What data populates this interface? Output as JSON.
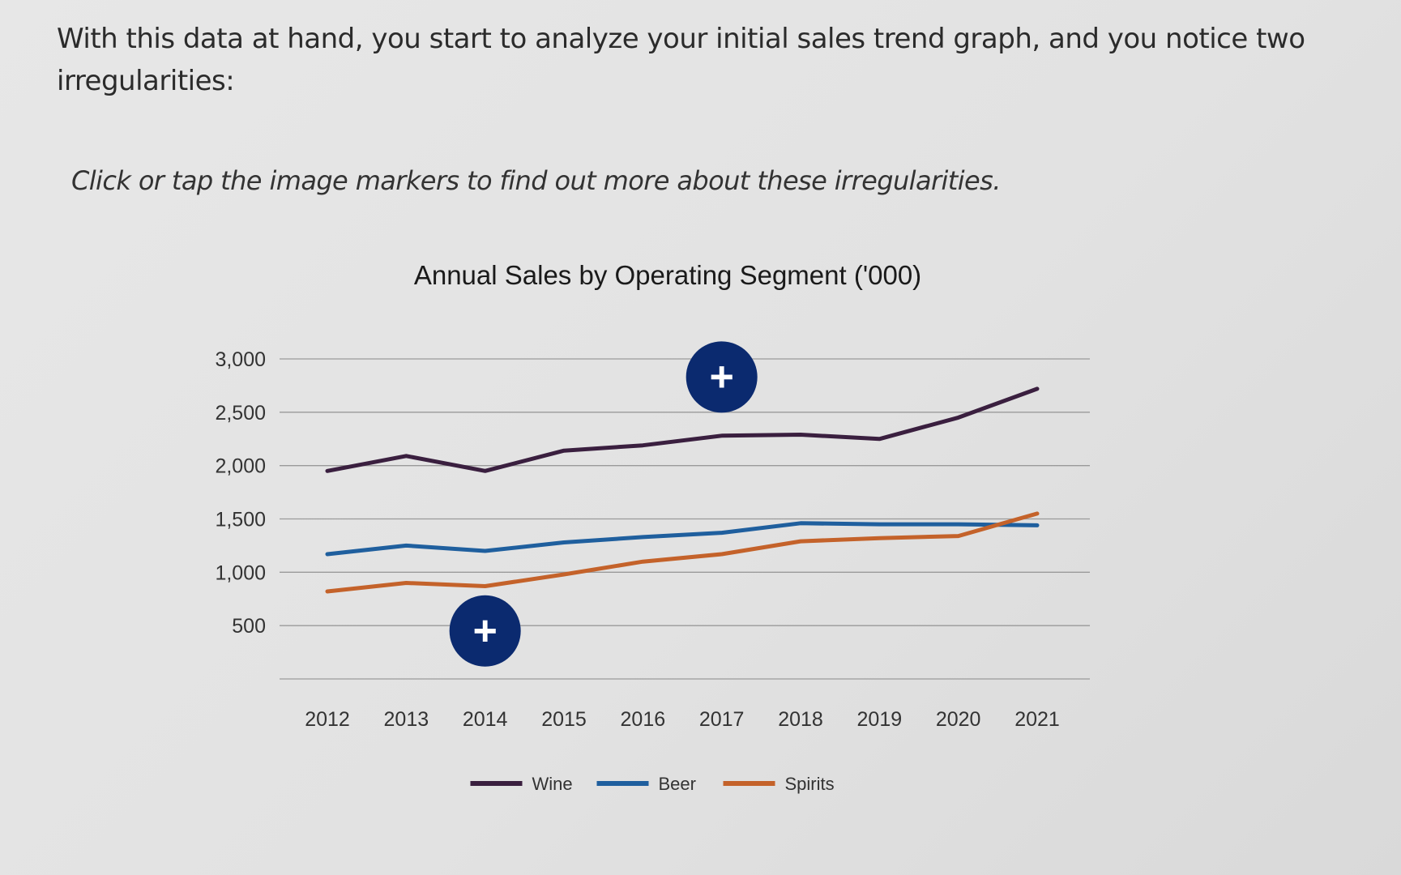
{
  "content": {
    "intro_text": "With this data at hand, you start to analyze your initial sales trend graph, and you notice two irregularities:",
    "instruction_text": "Click or tap the image markers to find out more about these irregularities."
  },
  "markers": [
    {
      "label": "+",
      "year": 2017,
      "value": 2830,
      "color": "#0b2a6f"
    },
    {
      "label": "+",
      "year": 2014,
      "value": 450,
      "color": "#0b2a6f"
    }
  ],
  "chart_data": {
    "type": "line",
    "title": "Annual Sales by Operating Segment ('000)",
    "xlabel": "",
    "ylabel": "",
    "x": [
      2012,
      2013,
      2014,
      2015,
      2016,
      2017,
      2018,
      2019,
      2020,
      2021
    ],
    "x_tick_labels": [
      "2012",
      "2013",
      "2014",
      "2015",
      "2016",
      "2017",
      "2018",
      "2019",
      "2020",
      "2021"
    ],
    "y_ticks": [
      500,
      1000,
      1500,
      2000,
      2500,
      3000
    ],
    "y_tick_labels": [
      "500",
      "1,000",
      "1,500",
      "2,000",
      "2,500",
      "3,000"
    ],
    "ylim": [
      0,
      3000
    ],
    "grid": true,
    "legend_position": "bottom-center",
    "series": [
      {
        "name": "Wine",
        "color": "#3a1f3f",
        "values": [
          1950,
          2090,
          1950,
          2140,
          2190,
          2280,
          2290,
          2250,
          2450,
          2720
        ]
      },
      {
        "name": "Beer",
        "color": "#1f5f9e",
        "values": [
          1170,
          1250,
          1200,
          1280,
          1330,
          1370,
          1460,
          1450,
          1450,
          1440
        ]
      },
      {
        "name": "Spirits",
        "color": "#c4622a",
        "values": [
          820,
          900,
          870,
          980,
          1100,
          1170,
          1290,
          1320,
          1340,
          1550
        ]
      }
    ]
  }
}
